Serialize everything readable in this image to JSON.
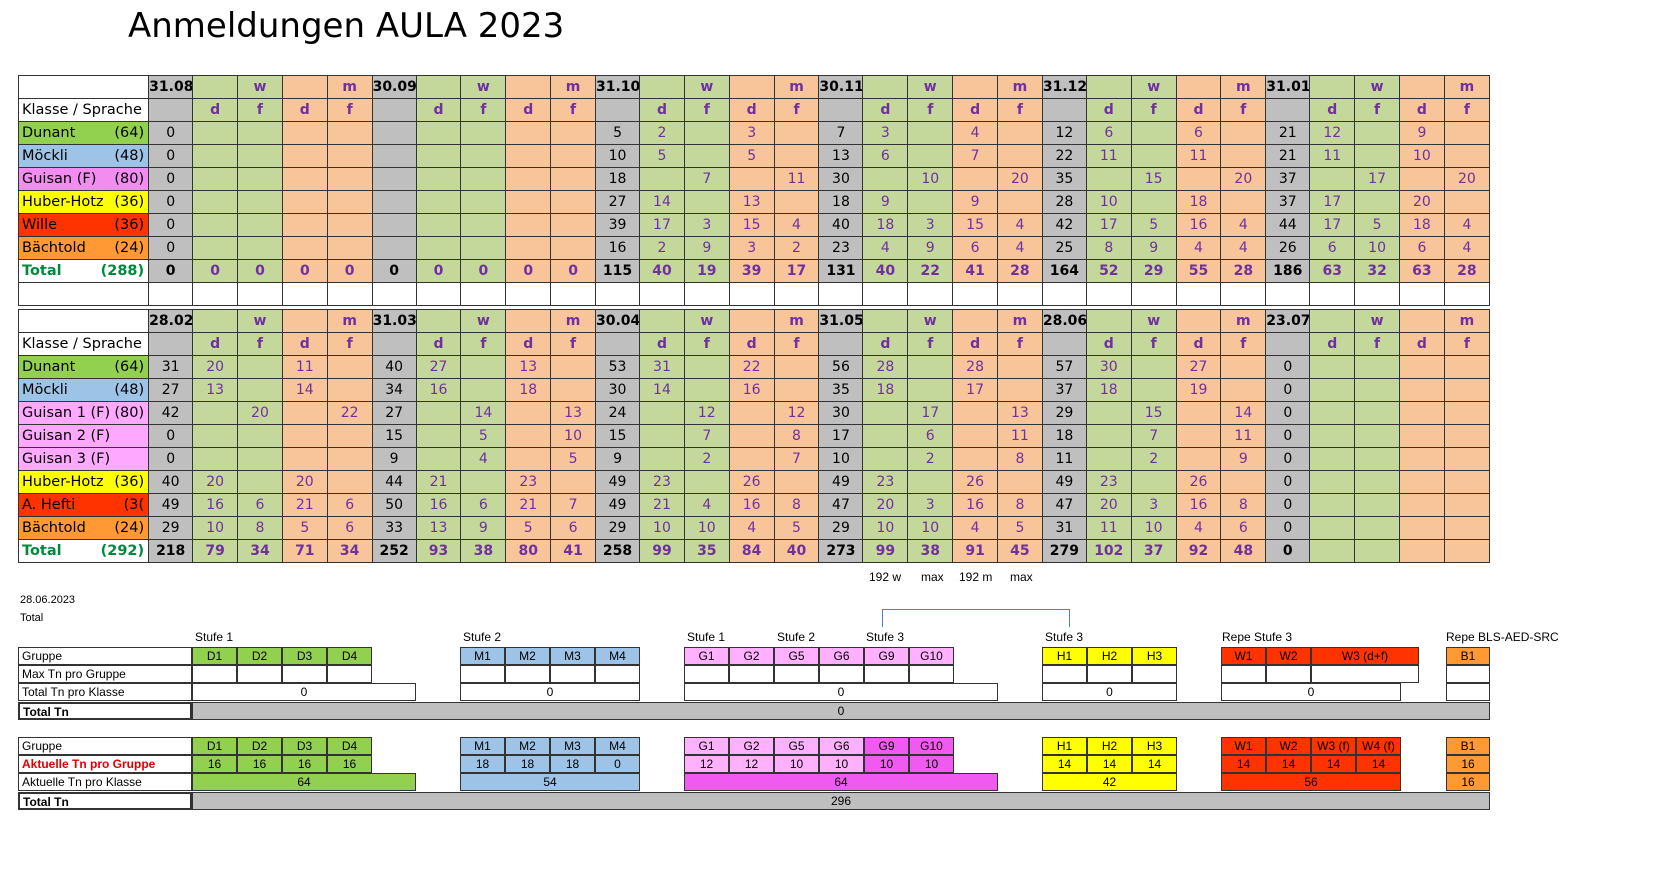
{
  "title": "Anmeldungen AULA 2023",
  "table1": {
    "dates": [
      "31.08.",
      "30.09.",
      "31.10.",
      "30.11.",
      "31.12.",
      "31.01."
    ],
    "gender": {
      "w": "w",
      "m": "m"
    },
    "lang": {
      "d": "d",
      "f": "f"
    },
    "label_header": "Klasse / Sprache",
    "rows": [
      {
        "name": "Dunant",
        "count": "(64)",
        "cls": "bg-dunant",
        "vals": [
          [
            "0",
            "",
            "",
            "",
            ""
          ],
          [
            "5",
            "2",
            "",
            "3",
            ""
          ],
          [
            "7",
            "3",
            "",
            "4",
            ""
          ],
          [
            "12",
            "6",
            "",
            "6",
            ""
          ],
          [
            "21",
            "12",
            "",
            "9",
            ""
          ]
        ]
      },
      {
        "name": "Möckli",
        "count": "(48)",
        "cls": "bg-moeckli",
        "vals": [
          [
            "0",
            "",
            "",
            "",
            ""
          ],
          [
            "10",
            "5",
            "",
            "5",
            ""
          ],
          [
            "13",
            "6",
            "",
            "7",
            ""
          ],
          [
            "22",
            "11",
            "",
            "11",
            ""
          ],
          [
            "21",
            "11",
            "",
            "10",
            ""
          ]
        ]
      },
      {
        "name": "Guisan  (F)",
        "count": "(80)",
        "cls": "bg-guisan",
        "vals": [
          [
            "0",
            "",
            "",
            "",
            ""
          ],
          [
            "18",
            "",
            "7",
            "",
            "11"
          ],
          [
            "30",
            "",
            "10",
            "",
            "20"
          ],
          [
            "35",
            "",
            "15",
            "",
            "20"
          ],
          [
            "37",
            "",
            "17",
            "",
            "20"
          ]
        ]
      },
      {
        "name": "Huber-Hotz",
        "count": "(36)",
        "cls": "bg-huber",
        "vals": [
          [
            "0",
            "",
            "",
            "",
            ""
          ],
          [
            "27",
            "14",
            "",
            "13",
            ""
          ],
          [
            "18",
            "9",
            "",
            "9",
            ""
          ],
          [
            "28",
            "10",
            "",
            "18",
            ""
          ],
          [
            "37",
            "17",
            "",
            "20",
            ""
          ]
        ]
      },
      {
        "name": "Wille",
        "count": "(36)",
        "cls": "bg-wille",
        "vals": [
          [
            "0",
            "",
            "",
            "",
            ""
          ],
          [
            "39",
            "17",
            "3",
            "15",
            "4"
          ],
          [
            "40",
            "18",
            "3",
            "15",
            "4"
          ],
          [
            "42",
            "17",
            "5",
            "16",
            "4"
          ],
          [
            "44",
            "17",
            "5",
            "18",
            "4"
          ]
        ]
      },
      {
        "name": "Bächtold",
        "count": "(24)",
        "cls": "bg-baechtold",
        "vals": [
          [
            "0",
            "",
            "",
            "",
            ""
          ],
          [
            "16",
            "2",
            "9",
            "3",
            "2"
          ],
          [
            "23",
            "4",
            "9",
            "6",
            "4"
          ],
          [
            "25",
            "8",
            "9",
            "4",
            "4"
          ],
          [
            "26",
            "6",
            "10",
            "6",
            "4"
          ]
        ]
      }
    ],
    "total": {
      "name": "Total",
      "count": "(288)",
      "first": [
        "0",
        "0",
        "0",
        "0",
        "0",
        "0",
        "0",
        "0",
        "0",
        "0"
      ],
      "vals": [
        [
          "115",
          "40",
          "19",
          "39",
          "17"
        ],
        [
          "131",
          "40",
          "22",
          "41",
          "28"
        ],
        [
          "164",
          "52",
          "29",
          "55",
          "28"
        ],
        [
          "186",
          "63",
          "32",
          "63",
          "28"
        ]
      ]
    }
  },
  "table2": {
    "dates": [
      "28.02.",
      "31.03.",
      "30.04.",
      "31.05.",
      "28.06.",
      "23.07."
    ],
    "rows": [
      {
        "name": "Dunant",
        "count": "(64)",
        "cls": "bg-dunant",
        "vals": [
          [
            "31",
            "20",
            "",
            "11",
            ""
          ],
          [
            "40",
            "27",
            "",
            "13",
            ""
          ],
          [
            "53",
            "31",
            "",
            "22",
            ""
          ],
          [
            "56",
            "28",
            "",
            "28",
            ""
          ],
          [
            "57",
            "30",
            "",
            "27",
            ""
          ],
          [
            "0",
            "",
            "",
            "",
            ""
          ]
        ]
      },
      {
        "name": "Möckli",
        "count": "(48)",
        "cls": "bg-moeckli",
        "vals": [
          [
            "27",
            "13",
            "",
            "14",
            ""
          ],
          [
            "34",
            "16",
            "",
            "18",
            ""
          ],
          [
            "30",
            "14",
            "",
            "16",
            ""
          ],
          [
            "35",
            "18",
            "",
            "17",
            ""
          ],
          [
            "37",
            "18",
            "",
            "19",
            ""
          ],
          [
            "0",
            "",
            "",
            "",
            ""
          ]
        ]
      },
      {
        "name": "Guisan 1  (F)",
        "count": "(80)",
        "cls": "bg-guisan2",
        "vals": [
          [
            "42",
            "",
            "20",
            "",
            "22"
          ],
          [
            "27",
            "",
            "14",
            "",
            "13"
          ],
          [
            "24",
            "",
            "12",
            "",
            "12"
          ],
          [
            "30",
            "",
            "17",
            "",
            "13"
          ],
          [
            "29",
            "",
            "15",
            "",
            "14"
          ],
          [
            "0",
            "",
            "",
            "",
            ""
          ]
        ]
      },
      {
        "name": "Guisan 2  (F)",
        "count": "",
        "cls": "bg-guisan2",
        "vals": [
          [
            "0",
            "",
            "",
            "",
            ""
          ],
          [
            "15",
            "",
            "5",
            "",
            "10"
          ],
          [
            "15",
            "",
            "7",
            "",
            "8"
          ],
          [
            "17",
            "",
            "6",
            "",
            "11"
          ],
          [
            "18",
            "",
            "7",
            "",
            "11"
          ],
          [
            "0",
            "",
            "",
            "",
            ""
          ]
        ]
      },
      {
        "name": "Guisan 3  (F)",
        "count": "",
        "cls": "bg-guisan2",
        "vals": [
          [
            "0",
            "",
            "",
            "",
            ""
          ],
          [
            "9",
            "",
            "4",
            "",
            "5"
          ],
          [
            "9",
            "",
            "2",
            "",
            "7"
          ],
          [
            "10",
            "",
            "2",
            "",
            "8"
          ],
          [
            "11",
            "",
            "2",
            "",
            "9"
          ],
          [
            "0",
            "",
            "",
            "",
            ""
          ]
        ]
      },
      {
        "name": "Huber-Hotz",
        "count": "(36)",
        "cls": "bg-huber",
        "vals": [
          [
            "40",
            "20",
            "",
            "20",
            ""
          ],
          [
            "44",
            "21",
            "",
            "23",
            ""
          ],
          [
            "49",
            "23",
            "",
            "26",
            ""
          ],
          [
            "49",
            "23",
            "",
            "26",
            ""
          ],
          [
            "49",
            "23",
            "",
            "26",
            ""
          ],
          [
            "0",
            "",
            "",
            "",
            ""
          ]
        ]
      },
      {
        "name": "A. Hefti",
        "count": "(3(",
        "cls": "bg-wille",
        "vals": [
          [
            "49",
            "16",
            "6",
            "21",
            "6"
          ],
          [
            "50",
            "16",
            "6",
            "21",
            "7"
          ],
          [
            "49",
            "21",
            "4",
            "16",
            "8"
          ],
          [
            "47",
            "20",
            "3",
            "16",
            "8"
          ],
          [
            "47",
            "20",
            "3",
            "16",
            "8"
          ],
          [
            "0",
            "",
            "",
            "",
            ""
          ]
        ]
      },
      {
        "name": "Bächtold",
        "count": "(24)",
        "cls": "bg-baechtold",
        "vals": [
          [
            "29",
            "10",
            "8",
            "5",
            "6"
          ],
          [
            "33",
            "13",
            "9",
            "5",
            "6"
          ],
          [
            "29",
            "10",
            "10",
            "4",
            "5"
          ],
          [
            "29",
            "10",
            "10",
            "4",
            "5"
          ],
          [
            "31",
            "11",
            "10",
            "4",
            "6"
          ],
          [
            "0",
            "",
            "",
            "",
            ""
          ]
        ]
      }
    ],
    "total": {
      "name": "Total",
      "count": "(292)",
      "vals": [
        [
          "218",
          "79",
          "34",
          "71",
          "34"
        ],
        [
          "252",
          "93",
          "38",
          "80",
          "41"
        ],
        [
          "258",
          "99",
          "35",
          "84",
          "40"
        ],
        [
          "273",
          "99",
          "38",
          "91",
          "45"
        ],
        [
          "279",
          "102",
          "37",
          "92",
          "48"
        ],
        [
          "0",
          "",
          "",
          "",
          ""
        ]
      ]
    }
  },
  "notes": {
    "w192": "192 w",
    "max1": "max",
    "m192": "192 m",
    "max2": "max"
  },
  "date_stamp": "28.06.2023",
  "total_label": "Total",
  "stufen": {
    "s1a": "Stufe 1",
    "s2a": "Stufe 2",
    "s1b": "Stufe 1",
    "s2b": "Stufe 2",
    "s3a": "Stufe 3",
    "s3b": "Stufe 3",
    "repe3": "Repe Stufe 3",
    "repebls": "Repe BLS-AED-SRC"
  },
  "plan": {
    "row_labels": {
      "gruppe": "Gruppe",
      "max": "Max Tn pro Gruppe",
      "total_klasse": "Total Tn pro Klasse",
      "total_tn": "Total Tn"
    },
    "groups": {
      "d": [
        "D1",
        "D2",
        "D3",
        "D4"
      ],
      "m": [
        "M1",
        "M2",
        "M3",
        "M4"
      ],
      "g": [
        "G1",
        "G2",
        "G5",
        "G6",
        "G9",
        "G10"
      ],
      "h": [
        "H1",
        "H2",
        "H3"
      ],
      "w": [
        "W1",
        "W2",
        "W3 (d+f)"
      ],
      "b": [
        "B1"
      ]
    },
    "klasse_totals": {
      "d": "0",
      "m": "0",
      "g": "0",
      "h": "0",
      "w": "0"
    },
    "total_tn": "0"
  },
  "actual": {
    "row_labels": {
      "gruppe": "Gruppe",
      "aktuell_gruppe": "Aktuelle Tn pro Gruppe",
      "aktuell_klasse": "Aktuelle Tn pro Klasse",
      "total_tn": "Total Tn"
    },
    "groups": {
      "d": [
        "D1",
        "D2",
        "D3",
        "D4"
      ],
      "m": [
        "M1",
        "M2",
        "M3",
        "M4"
      ],
      "g": [
        "G1",
        "G2",
        "G5",
        "G6",
        "G9",
        "G10"
      ],
      "h": [
        "H1",
        "H2",
        "H3"
      ],
      "w": [
        "W1",
        "W2",
        "W3 (f)",
        "W4 (f)"
      ],
      "b": [
        "B1"
      ]
    },
    "per_group": {
      "d": [
        "16",
        "16",
        "16",
        "16"
      ],
      "m": [
        "18",
        "18",
        "18",
        "0"
      ],
      "g": [
        "12",
        "12",
        "10",
        "10",
        "10",
        "10"
      ],
      "h": [
        "14",
        "14",
        "14"
      ],
      "w": [
        "14",
        "14",
        "14",
        "14"
      ],
      "b": [
        "16"
      ]
    },
    "klasse_totals": {
      "d": "64",
      "m": "54",
      "g": "64",
      "h": "42",
      "w": "56",
      "b": "16"
    },
    "total_tn": "296"
  }
}
